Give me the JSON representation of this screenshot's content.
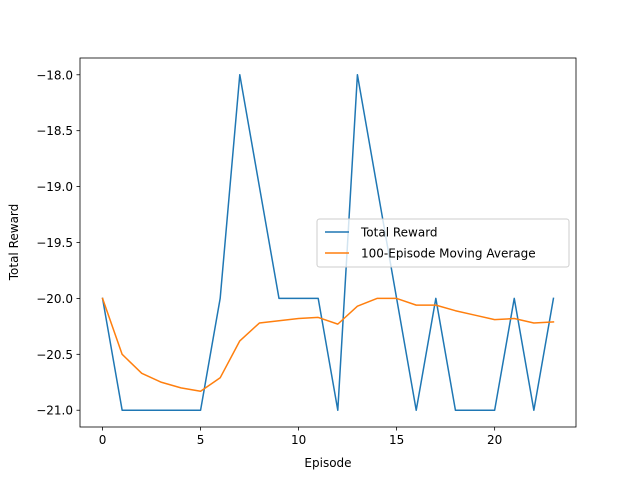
{
  "chart_data": {
    "type": "line",
    "title": "",
    "xlabel": "Episode",
    "ylabel": "Total Reward",
    "xlim": [
      -1.15,
      24.15
    ],
    "ylim": [
      -21.15,
      -17.85
    ],
    "xticks": [
      0,
      5,
      10,
      15,
      20
    ],
    "yticks": [
      -21.0,
      -20.5,
      -20.0,
      -19.5,
      -19.0,
      -18.5,
      -18.0
    ],
    "xtick_labels": [
      "0",
      "5",
      "10",
      "15",
      "20"
    ],
    "ytick_labels": [
      "−21.0",
      "−20.5",
      "−20.0",
      "−19.5",
      "−19.0",
      "−18.5",
      "−18.0"
    ],
    "grid": false,
    "legend_position": "center-right",
    "x": [
      0,
      1,
      2,
      3,
      4,
      5,
      6,
      7,
      8,
      9,
      10,
      11,
      12,
      13,
      14,
      15,
      16,
      17,
      18,
      19,
      20,
      21,
      22,
      23
    ],
    "series": [
      {
        "name": "Total Reward",
        "color": "#1f77b4",
        "values": [
          -20,
          -21,
          -21,
          -21,
          -21,
          -21,
          -20,
          -18,
          -19,
          -20,
          -20,
          -20,
          -21,
          -18,
          -19,
          -20,
          -21,
          -20,
          -21,
          -21,
          -21,
          -20,
          -21,
          -20
        ]
      },
      {
        "name": "100-Episode Moving Average",
        "color": "#ff7f0e",
        "values": [
          -20.0,
          -20.5,
          -20.67,
          -20.75,
          -20.8,
          -20.83,
          -20.71,
          -20.38,
          -20.22,
          -20.2,
          -20.18,
          -20.17,
          -20.23,
          -20.07,
          -20.0,
          -20.0,
          -20.06,
          -20.06,
          -20.11,
          -20.15,
          -20.19,
          -20.18,
          -20.22,
          -20.21
        ]
      }
    ]
  }
}
